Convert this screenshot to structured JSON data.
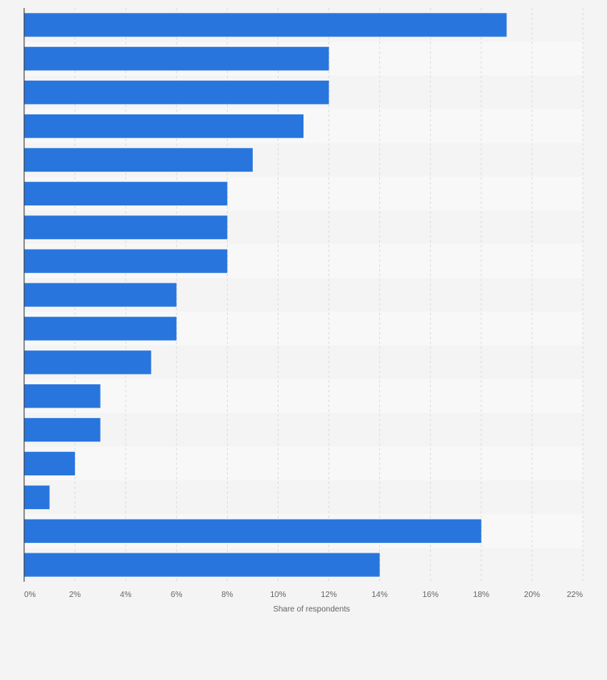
{
  "chart_data": {
    "type": "bar",
    "orientation": "horizontal",
    "categories": [
      "",
      "",
      "",
      "",
      "",
      "",
      "",
      "",
      "",
      "",
      "",
      "",
      "",
      "",
      "",
      "",
      ""
    ],
    "series": [
      {
        "values": [
          19,
          12,
          12,
          11,
          9,
          8,
          8,
          8,
          6,
          6,
          5,
          3,
          3,
          2,
          1,
          18,
          14
        ]
      }
    ],
    "xlabel": "Share of respondents",
    "ylabel": "",
    "xlim": [
      0,
      22
    ],
    "xticks": [
      0,
      2,
      4,
      6,
      8,
      10,
      12,
      14,
      16,
      18,
      20,
      22
    ],
    "tick_labels": [
      "0%",
      "2%",
      "4%",
      "6%",
      "8%",
      "10%",
      "12%",
      "14%",
      "16%",
      "18%",
      "20%",
      "22%"
    ],
    "grid": true,
    "legend": "none",
    "colors": {
      "bar": "#2876dd",
      "row_even": "#f4f4f4",
      "row_odd": "#f8f8f8",
      "grid": "#dddddd",
      "axis": "#333333"
    }
  }
}
